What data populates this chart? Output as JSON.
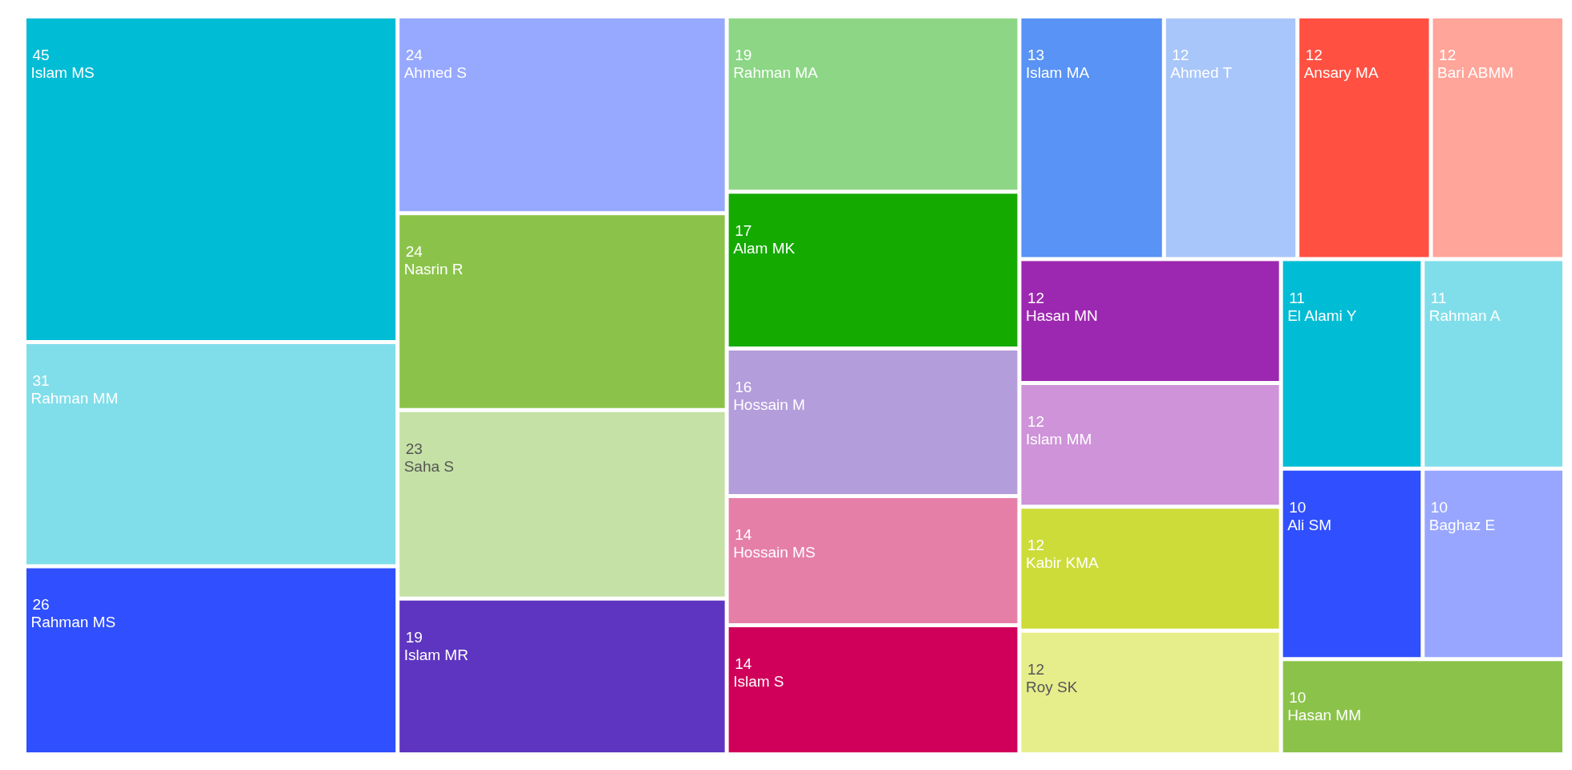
{
  "chart_data": {
    "type": "other",
    "categories": [
      "Islam MS",
      "Rahman MM",
      "Rahman MS",
      "Ahmed S",
      "Nasrin R",
      "Saha S",
      "Islam MR",
      "Rahman MA",
      "Alam MK",
      "Hossain M",
      "Hossain MS",
      "Islam S",
      "Islam MA",
      "Ahmed T",
      "Ansary MA",
      "Bari ABMM",
      "Hasan MN",
      "Islam MM",
      "Kabir KMA",
      "Roy SK",
      "El Alami Y",
      "Rahman A",
      "Ali SM",
      "Baghaz E",
      "Hasan MM"
    ],
    "values": [
      45,
      31,
      26,
      24,
      24,
      23,
      19,
      19,
      17,
      16,
      14,
      14,
      13,
      12,
      12,
      12,
      12,
      12,
      12,
      12,
      11,
      11,
      10,
      10,
      10
    ],
    "colors": [
      "#00bcd4",
      "#80deea",
      "#304ffe",
      "#97a8ff",
      "#8bc34a",
      "#c5e1a5",
      "#5e35c0",
      "#8cd685",
      "#14aa00",
      "#b39ddb",
      "#e57fa8",
      "#d0005a",
      "#5893f5",
      "#a8c6f9",
      "#ff5041",
      "#ffa59a",
      "#9c27b0",
      "#ce93d8",
      "#cddc39",
      "#e6ee8c",
      "#00bcd4",
      "#80deea",
      "#304ffe",
      "#98a6ff",
      "#8bc34a"
    ],
    "data_labels": true
  }
}
